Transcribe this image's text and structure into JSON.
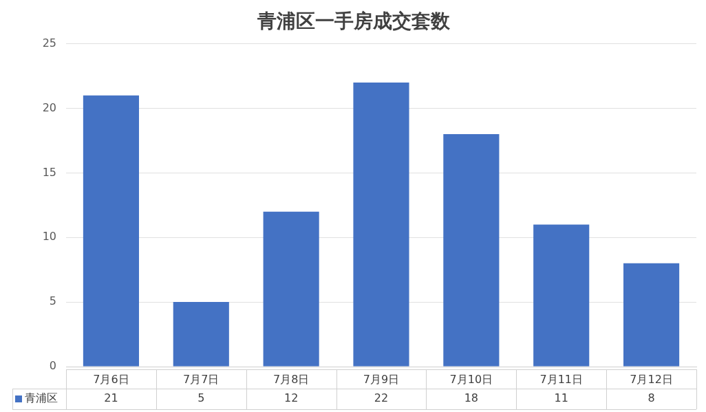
{
  "chart_data": {
    "type": "bar",
    "title": "青浦区一手房成交套数",
    "categories": [
      "7月6日",
      "7月7日",
      "7月8日",
      "7月9日",
      "7月10日",
      "7月11日",
      "7月12日"
    ],
    "series": [
      {
        "name": "青浦区",
        "color": "#4472c4",
        "values": [
          21,
          5,
          12,
          22,
          18,
          11,
          8
        ]
      }
    ],
    "ylim": [
      0,
      25
    ],
    "yticks": [
      0,
      5,
      10,
      15,
      20,
      25
    ],
    "grid": "y",
    "data_labels": true
  }
}
